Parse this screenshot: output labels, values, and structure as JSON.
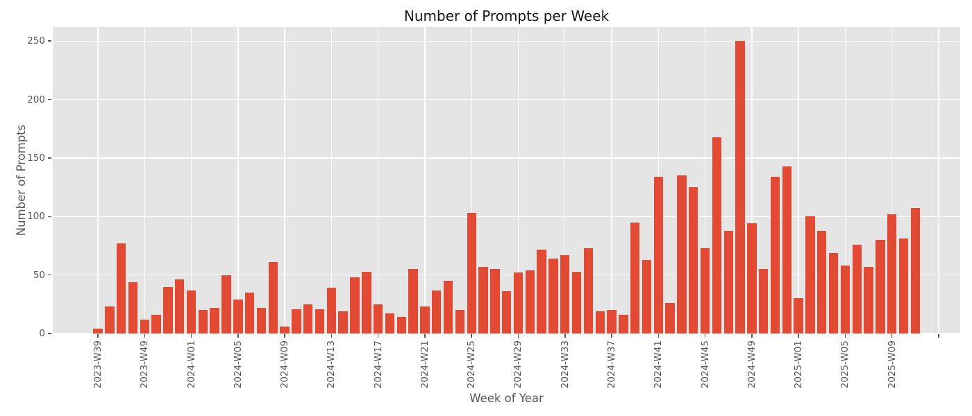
{
  "chart_data": {
    "type": "bar",
    "title": "Number of Prompts per Week",
    "xlabel": "Week of Year",
    "ylabel": "Number of Prompts",
    "ylim": [
      0,
      262
    ],
    "y_ticks": [
      0,
      50,
      100,
      150,
      200,
      250
    ],
    "grid": true,
    "legend": false,
    "x_tick_interval": 4,
    "x_tick_slots": [
      0,
      4,
      8,
      12,
      16,
      20,
      24,
      28,
      32,
      36,
      40,
      44,
      48,
      52,
      56,
      60,
      64,
      68,
      72
    ],
    "x_tick_labels": [
      "2023-W39",
      "2023-W49",
      "2024-W01",
      "2024-W05",
      "2024-W09",
      "2024-W13",
      "2024-W17",
      "2024-W21",
      "2024-W25",
      "2024-W29",
      "2024-W33",
      "2024-W37",
      "2024-W41",
      "2024-W45",
      "2024-W49",
      "2025-W01",
      "2025-W05",
      "2025-W09",
      ""
    ],
    "values": [
      4,
      23,
      77,
      44,
      12,
      16,
      40,
      46,
      37,
      20,
      22,
      50,
      29,
      35,
      22,
      61,
      6,
      21,
      25,
      21,
      39,
      19,
      48,
      53,
      25,
      17,
      14,
      55,
      23,
      37,
      45,
      20,
      103,
      57,
      55,
      36,
      52,
      54,
      72,
      64,
      67,
      53,
      73,
      19,
      20,
      16,
      95,
      63,
      134,
      26,
      135,
      125,
      73,
      168,
      88,
      250,
      94,
      55,
      134,
      143,
      30,
      100,
      88,
      69,
      58,
      76,
      57,
      80,
      102,
      81,
      107
    ],
    "trailing_empty_slots": 2,
    "colors": {
      "bar": "#E24A33",
      "plot_background": "#E5E5E5",
      "figure_background": "#FFFFFF",
      "grid": "#FFFFFF",
      "tick_text": "#555555",
      "axis_label_text": "#555555",
      "title_text": "#151515",
      "tick_mark": "#555555"
    }
  }
}
